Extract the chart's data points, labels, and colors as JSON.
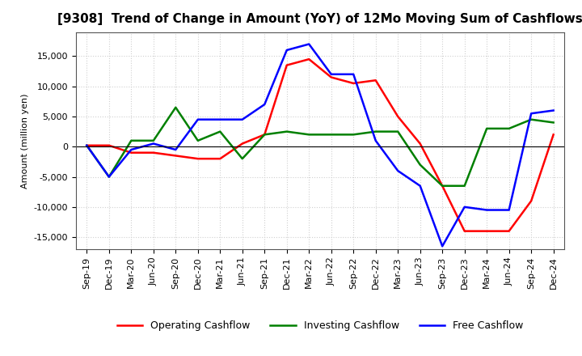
{
  "title": "[9308]  Trend of Change in Amount (YoY) of 12Mo Moving Sum of Cashflows",
  "ylabel": "Amount (million yen)",
  "ylim": [
    -17000,
    19000
  ],
  "yticks": [
    -15000,
    -10000,
    -5000,
    0,
    5000,
    10000,
    15000
  ],
  "background_color": "#ffffff",
  "grid_color": "#d0d0d0",
  "x_labels": [
    "Sep-19",
    "Dec-19",
    "Mar-20",
    "Jun-20",
    "Sep-20",
    "Dec-20",
    "Mar-21",
    "Jun-21",
    "Sep-21",
    "Dec-21",
    "Mar-22",
    "Jun-22",
    "Sep-22",
    "Dec-22",
    "Mar-23",
    "Jun-23",
    "Sep-23",
    "Dec-23",
    "Mar-24",
    "Jun-24",
    "Sep-24",
    "Dec-24"
  ],
  "operating": [
    200,
    200,
    -1000,
    -1000,
    -1500,
    -2000,
    -2000,
    500,
    2000,
    13500,
    14500,
    11500,
    10500,
    11000,
    5000,
    500,
    -6500,
    -14000,
    -14000,
    -14000,
    -9000,
    2000
  ],
  "investing": [
    200,
    -5000,
    1000,
    1000,
    6500,
    1000,
    2500,
    -2000,
    2000,
    2500,
    2000,
    2000,
    2000,
    2500,
    2500,
    -3000,
    -6500,
    -6500,
    3000,
    3000,
    4500,
    4000
  ],
  "free": [
    200,
    -5000,
    -500,
    500,
    -500,
    4500,
    4500,
    4500,
    7000,
    16000,
    17000,
    12000,
    12000,
    1000,
    -4000,
    -6500,
    -16500,
    -10000,
    -10500,
    -10500,
    5500,
    6000
  ],
  "op_color": "#ff0000",
  "inv_color": "#008000",
  "free_color": "#0000ff",
  "line_width": 1.8,
  "title_fontsize": 11,
  "tick_fontsize": 8,
  "legend_fontsize": 9
}
